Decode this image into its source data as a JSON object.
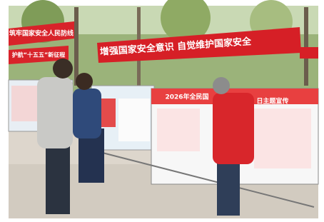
{
  "scene": {
    "banners": [
      "筑牢国家安全人民防线",
      "护航“十五五”新征程",
      "增强国家安全意识 自觉维护国家安全"
    ],
    "board_title": [
      "2026年全民国",
      "日主题宣传"
    ]
  }
}
